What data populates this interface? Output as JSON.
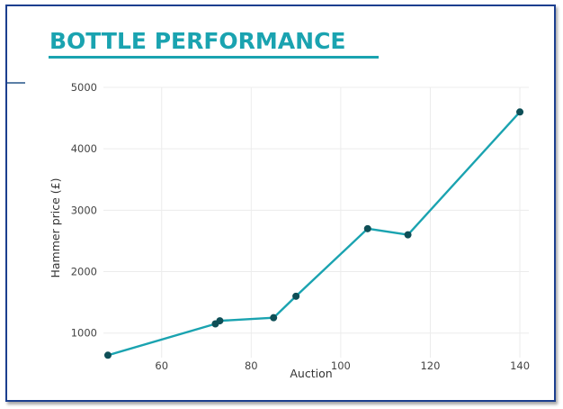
{
  "chart_data": {
    "type": "line",
    "title": "BOTTLE PERFORMANCE",
    "xlabel": "Auction",
    "ylabel": "Hammer price (£)",
    "x": [
      48,
      72,
      73,
      85,
      90,
      106,
      115,
      140
    ],
    "y": [
      640,
      1150,
      1200,
      1250,
      1600,
      2700,
      2600,
      4600
    ],
    "xlim": [
      47,
      142
    ],
    "ylim": [
      600,
      5000
    ],
    "xticks": [
      60,
      80,
      100,
      120,
      140
    ],
    "yticks": [
      1000,
      2000,
      3000,
      4000,
      5000
    ],
    "grid": true,
    "line_color": "#1aa3b0",
    "marker_color": "#0e4f57"
  }
}
